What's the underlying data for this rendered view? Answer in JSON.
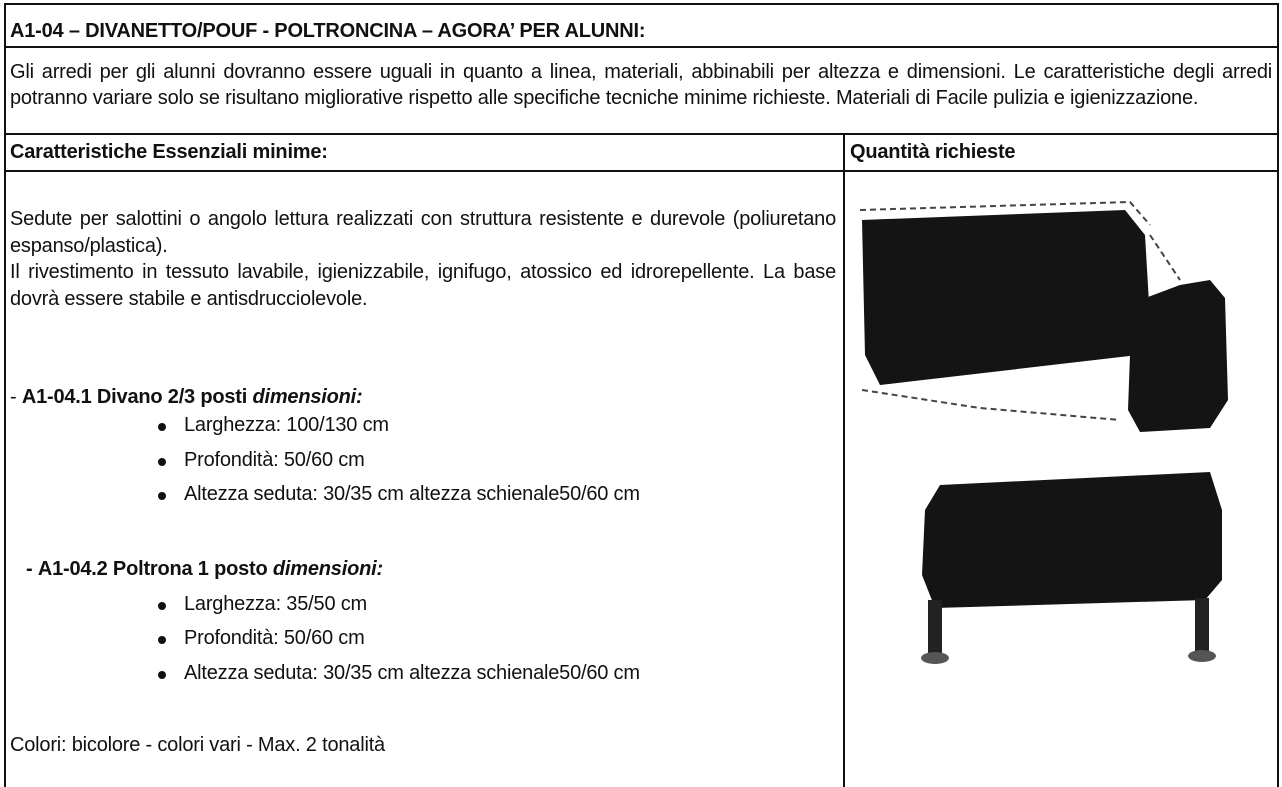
{
  "header": {
    "title": "A1-04 – DIVANETTO/POUF - POLTRONCINA – AGORA’ PER ALUNNI:"
  },
  "intro": "Gli arredi per gli alunni dovranno essere uguali in quanto a linea, materiali, abbinabili per altezza e dimensioni. Le caratteristiche degli arredi potranno variare solo se risultano migliorative rispetto alle specifiche tecniche minime richieste. Materiali di Facile pulizia e igienizzazione.",
  "table": {
    "headers": [
      "Caratteristiche Essenziali minime:",
      "Quantità richieste"
    ],
    "description": [
      "Sedute per salottini o angolo lettura realizzati con struttura resistente e durevole (poliuretano espanso/plastica).",
      "Il rivestimento in tessuto lavabile, igienizzabile, ignifugo, atossico ed idrorepellente. La base dovrà essere stabile e antisdrucciolevole."
    ],
    "items": [
      {
        "prefix": "-",
        "name": "A1-04.1 Divano 2/3 posti",
        "label": "dimensioni:",
        "specs": [
          "Larghezza: 100/130 cm",
          "Profondità: 50/60 cm",
          "Altezza seduta: 30/35 cm altezza schienale50/60 cm"
        ]
      },
      {
        "prefix": "-",
        "name": "A1-04.2 Poltrona 1 posto",
        "label": "dimensioni:",
        "specs": [
          "Larghezza: 35/50 cm",
          "Profondità: 50/60 cm",
          "Altezza seduta: 30/35 cm altezza schienale50/60 cm"
        ]
      }
    ],
    "colors": "Colori: bicolore - colori vari - Max. 2 tonalità"
  }
}
